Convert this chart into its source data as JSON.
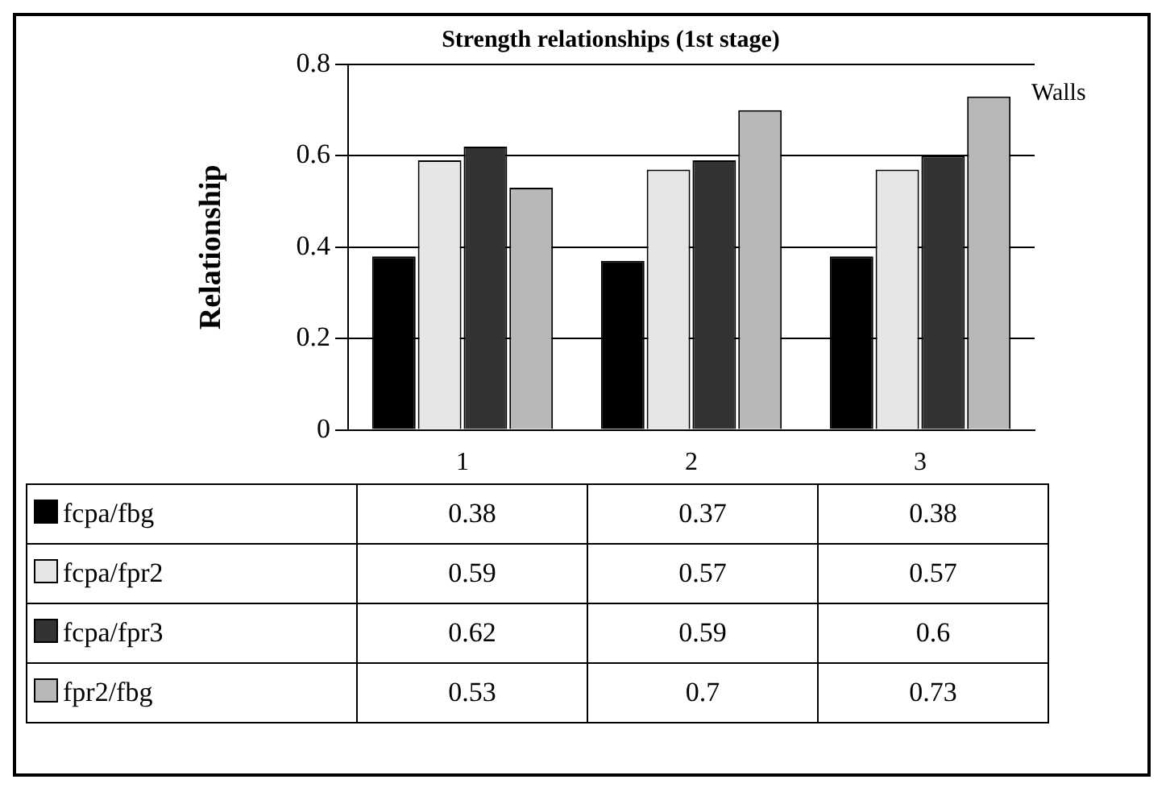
{
  "chart_data": {
    "type": "bar",
    "title": "Strength relationships (1st stage)",
    "ylabel": "Relationship",
    "categories": [
      "1",
      "2",
      "3"
    ],
    "series": [
      {
        "name": "fcpa/fbg",
        "color": "#000000",
        "values": [
          0.38,
          0.37,
          0.38
        ]
      },
      {
        "name": "fcpa/fpr2",
        "color": "#e6e6e6",
        "values": [
          0.59,
          0.57,
          0.57
        ]
      },
      {
        "name": "fcpa/fpr3",
        "color": "#333333",
        "values": [
          0.62,
          0.59,
          0.6
        ]
      },
      {
        "name": "fpr2/fbg",
        "color": "#b8b8b8",
        "values": [
          0.53,
          0.7,
          0.73
        ]
      }
    ],
    "ylim": [
      0,
      0.8
    ],
    "yticks": [
      0,
      0.2,
      0.4,
      0.6,
      0.8
    ],
    "grid": "y",
    "legend": "bottom",
    "data_labels": true,
    "annotations": [
      "Walls"
    ]
  }
}
